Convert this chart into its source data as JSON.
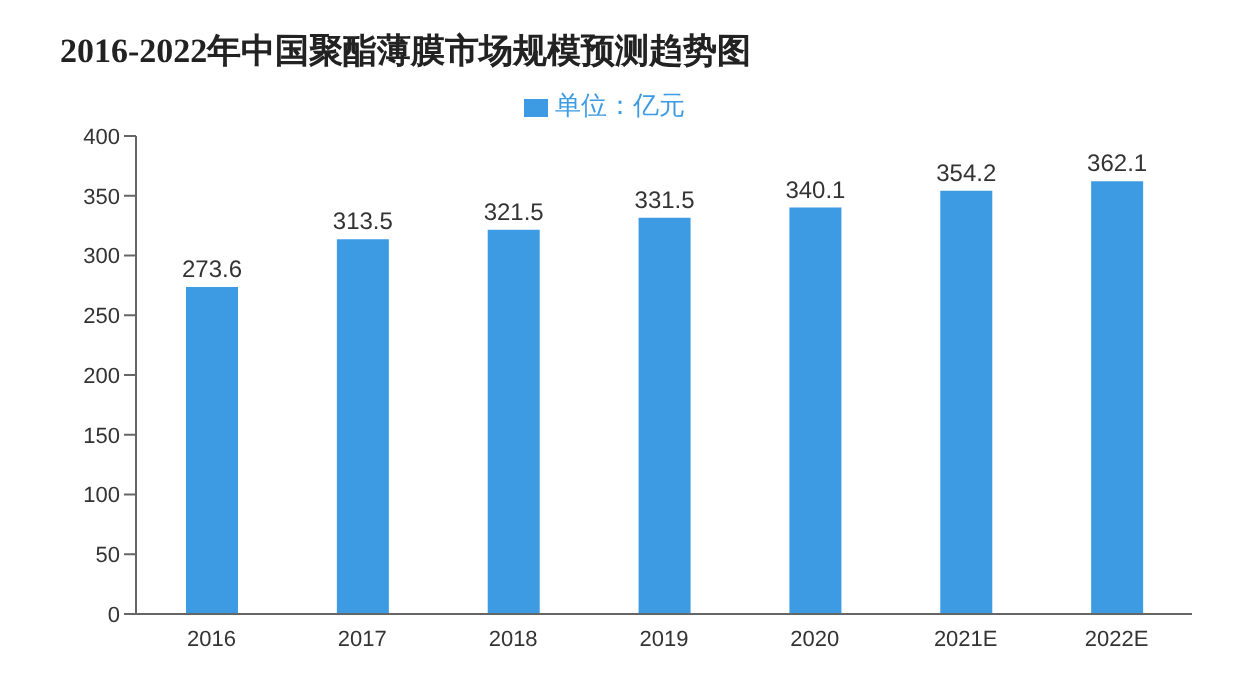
{
  "chart_data": {
    "type": "bar",
    "title": "2016-2022年中国聚酯薄膜市场规模预测趋势图",
    "categories": [
      "2016",
      "2017",
      "2018",
      "2019",
      "2020",
      "2021E",
      "2022E"
    ],
    "series": [
      {
        "name": "单位：亿元",
        "color": "#3d9be3",
        "values": [
          273.6,
          313.5,
          321.5,
          331.5,
          340.1,
          354.2,
          362.1
        ]
      }
    ],
    "ylim": [
      0,
      400
    ],
    "yticks": [
      0,
      50,
      100,
      150,
      200,
      250,
      300,
      350,
      400
    ],
    "grid": false,
    "legend": "top",
    "data_labels": true
  }
}
